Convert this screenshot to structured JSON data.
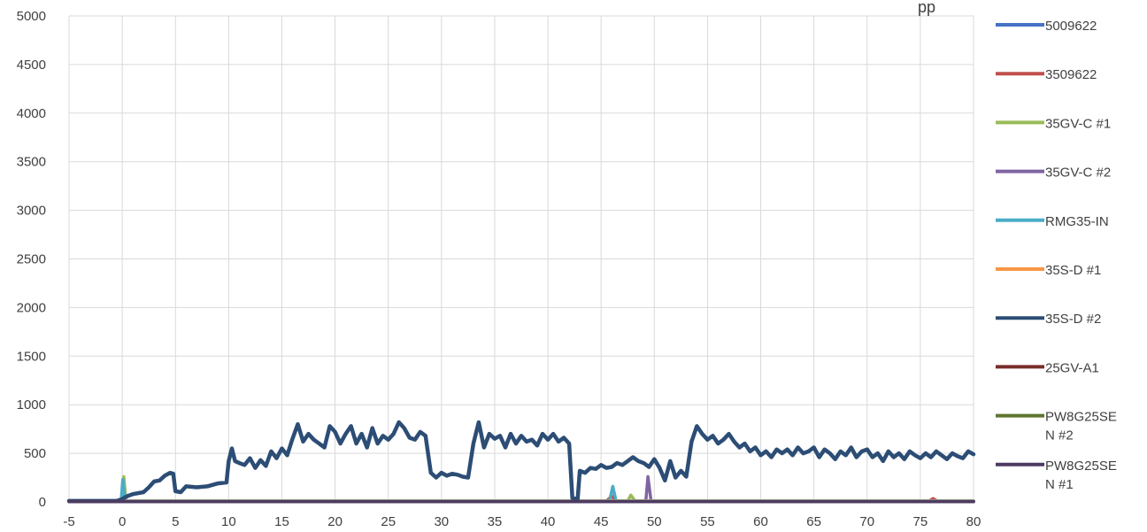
{
  "chart_data": {
    "type": "line",
    "title_fragment": "pp",
    "xlabel": "",
    "ylabel": "",
    "xlim": [
      -5,
      80
    ],
    "ylim": [
      0,
      5000
    ],
    "x_ticks": [
      -5,
      0,
      5,
      10,
      15,
      20,
      25,
      30,
      35,
      40,
      45,
      50,
      55,
      60,
      65,
      70,
      75,
      80
    ],
    "y_ticks": [
      0,
      500,
      1000,
      1500,
      2000,
      2500,
      3000,
      3500,
      4000,
      4500,
      5000
    ],
    "grid": true,
    "legend_position": "right",
    "series": [
      {
        "name": "5009622",
        "color": "#4472C4",
        "points": [
          [
            -5,
            10
          ],
          [
            80,
            10
          ]
        ]
      },
      {
        "name": "3509622",
        "color": "#C0504D",
        "points": [
          [
            -5,
            8
          ],
          [
            45.5,
            8
          ],
          [
            46,
            60
          ],
          [
            46.4,
            8
          ],
          [
            75.8,
            8
          ],
          [
            76.2,
            35
          ],
          [
            76.6,
            8
          ],
          [
            80,
            8
          ]
        ]
      },
      {
        "name": "35GV-C #1",
        "color": "#9BBB59",
        "points": [
          [
            -5,
            8
          ],
          [
            0,
            8
          ],
          [
            0.15,
            260
          ],
          [
            0.35,
            8
          ],
          [
            47.5,
            8
          ],
          [
            47.8,
            70
          ],
          [
            48.2,
            8
          ],
          [
            80,
            8
          ]
        ]
      },
      {
        "name": "35GV-C #2",
        "color": "#8064A2",
        "points": [
          [
            -5,
            5
          ],
          [
            49.2,
            5
          ],
          [
            49.4,
            260
          ],
          [
            49.7,
            5
          ],
          [
            80,
            5
          ]
        ]
      },
      {
        "name": "RMG35-IN",
        "color": "#4BACC6",
        "points": [
          [
            -5,
            12
          ],
          [
            -0.1,
            12
          ],
          [
            0.05,
            230
          ],
          [
            0.3,
            12
          ],
          [
            45.8,
            12
          ],
          [
            46.1,
            160
          ],
          [
            46.4,
            12
          ],
          [
            80,
            12
          ]
        ]
      },
      {
        "name": "35S-D #1",
        "color": "#F79646",
        "points": [
          [
            -5,
            6
          ],
          [
            80,
            6
          ]
        ]
      },
      {
        "name": "35S-D #2",
        "color": "#2C4D75",
        "points": [
          [
            -5,
            10
          ],
          [
            -0.5,
            10
          ],
          [
            0,
            30
          ],
          [
            0.5,
            60
          ],
          [
            1,
            80
          ],
          [
            2,
            100
          ],
          [
            2.5,
            150
          ],
          [
            3,
            210
          ],
          [
            3.5,
            220
          ],
          [
            4,
            270
          ],
          [
            4.5,
            300
          ],
          [
            4.8,
            290
          ],
          [
            5,
            110
          ],
          [
            5.5,
            100
          ],
          [
            6,
            160
          ],
          [
            7,
            150
          ],
          [
            8,
            160
          ],
          [
            9,
            190
          ],
          [
            9.8,
            200
          ],
          [
            10,
            420
          ],
          [
            10.3,
            550
          ],
          [
            10.6,
            420
          ],
          [
            11,
            400
          ],
          [
            11.5,
            380
          ],
          [
            12,
            450
          ],
          [
            12.5,
            350
          ],
          [
            13,
            430
          ],
          [
            13.5,
            370
          ],
          [
            14,
            520
          ],
          [
            14.5,
            450
          ],
          [
            15,
            550
          ],
          [
            15.5,
            480
          ],
          [
            16,
            650
          ],
          [
            16.5,
            800
          ],
          [
            17,
            620
          ],
          [
            17.5,
            700
          ],
          [
            18,
            640
          ],
          [
            18.5,
            600
          ],
          [
            19,
            560
          ],
          [
            19.5,
            780
          ],
          [
            20,
            720
          ],
          [
            20.5,
            600
          ],
          [
            21,
            700
          ],
          [
            21.5,
            780
          ],
          [
            22,
            600
          ],
          [
            22.5,
            700
          ],
          [
            23,
            560
          ],
          [
            23.5,
            760
          ],
          [
            24,
            600
          ],
          [
            24.5,
            680
          ],
          [
            25,
            640
          ],
          [
            25.5,
            700
          ],
          [
            26,
            820
          ],
          [
            26.5,
            760
          ],
          [
            27,
            660
          ],
          [
            27.5,
            640
          ],
          [
            28,
            720
          ],
          [
            28.5,
            680
          ],
          [
            29,
            300
          ],
          [
            29.5,
            250
          ],
          [
            30,
            300
          ],
          [
            30.5,
            270
          ],
          [
            31,
            290
          ],
          [
            31.5,
            280
          ],
          [
            32,
            260
          ],
          [
            32.5,
            250
          ],
          [
            33,
            600
          ],
          [
            33.5,
            820
          ],
          [
            34,
            560
          ],
          [
            34.5,
            700
          ],
          [
            35,
            650
          ],
          [
            35.5,
            680
          ],
          [
            36,
            560
          ],
          [
            36.5,
            700
          ],
          [
            37,
            600
          ],
          [
            37.5,
            680
          ],
          [
            38,
            620
          ],
          [
            38.5,
            640
          ],
          [
            39,
            580
          ],
          [
            39.5,
            700
          ],
          [
            40,
            640
          ],
          [
            40.5,
            700
          ],
          [
            41,
            620
          ],
          [
            41.5,
            660
          ],
          [
            42,
            600
          ],
          [
            42.3,
            40
          ],
          [
            42.8,
            30
          ],
          [
            43,
            320
          ],
          [
            43.5,
            300
          ],
          [
            44,
            350
          ],
          [
            44.5,
            340
          ],
          [
            45,
            380
          ],
          [
            45.5,
            350
          ],
          [
            46,
            360
          ],
          [
            46.5,
            400
          ],
          [
            47,
            380
          ],
          [
            47.5,
            420
          ],
          [
            48,
            460
          ],
          [
            48.5,
            420
          ],
          [
            49,
            400
          ],
          [
            49.5,
            360
          ],
          [
            50,
            440
          ],
          [
            50.5,
            350
          ],
          [
            51,
            220
          ],
          [
            51.5,
            420
          ],
          [
            52,
            250
          ],
          [
            52.5,
            320
          ],
          [
            53,
            260
          ],
          [
            53.5,
            620
          ],
          [
            54,
            780
          ],
          [
            54.5,
            700
          ],
          [
            55,
            640
          ],
          [
            55.5,
            680
          ],
          [
            56,
            600
          ],
          [
            56.5,
            640
          ],
          [
            57,
            700
          ],
          [
            57.5,
            620
          ],
          [
            58,
            560
          ],
          [
            58.5,
            600
          ],
          [
            59,
            520
          ],
          [
            59.5,
            560
          ],
          [
            60,
            480
          ],
          [
            60.5,
            520
          ],
          [
            61,
            460
          ],
          [
            61.5,
            540
          ],
          [
            62,
            500
          ],
          [
            62.5,
            540
          ],
          [
            63,
            480
          ],
          [
            63.5,
            560
          ],
          [
            64,
            500
          ],
          [
            64.5,
            520
          ],
          [
            65,
            560
          ],
          [
            65.5,
            460
          ],
          [
            66,
            540
          ],
          [
            66.5,
            500
          ],
          [
            67,
            440
          ],
          [
            67.5,
            520
          ],
          [
            68,
            480
          ],
          [
            68.5,
            560
          ],
          [
            69,
            460
          ],
          [
            69.5,
            520
          ],
          [
            70,
            540
          ],
          [
            70.5,
            460
          ],
          [
            71,
            500
          ],
          [
            71.5,
            420
          ],
          [
            72,
            520
          ],
          [
            72.5,
            460
          ],
          [
            73,
            500
          ],
          [
            73.5,
            440
          ],
          [
            74,
            520
          ],
          [
            74.5,
            480
          ],
          [
            75,
            450
          ],
          [
            75.5,
            500
          ],
          [
            76,
            460
          ],
          [
            76.5,
            520
          ],
          [
            77,
            480
          ],
          [
            77.5,
            440
          ],
          [
            78,
            500
          ],
          [
            78.5,
            470
          ],
          [
            79,
            450
          ],
          [
            79.5,
            520
          ],
          [
            80,
            490
          ]
        ]
      },
      {
        "name": "25GV-A1",
        "color": "#772C2A",
        "points": [
          [
            -5,
            4
          ],
          [
            80,
            4
          ]
        ]
      },
      {
        "name": "PW8G25SEN #2",
        "color": "#5F7530",
        "points": [
          [
            -5,
            3
          ],
          [
            80,
            3
          ]
        ]
      },
      {
        "name": "PW8G25SEN #1",
        "color": "#4D3B62",
        "points": [
          [
            -5,
            2
          ],
          [
            80,
            2
          ]
        ]
      }
    ]
  },
  "legend": {
    "labels": [
      [
        "5009622"
      ],
      [
        "3509622"
      ],
      [
        "35GV-C #1"
      ],
      [
        "35GV-C #2"
      ],
      [
        "RMG35-IN"
      ],
      [
        "35S-D #1"
      ],
      [
        "35S-D #2"
      ],
      [
        "25GV-A1"
      ],
      [
        "PW8G25SE",
        "N #2"
      ],
      [
        "PW8G25SE",
        "N #1"
      ]
    ]
  }
}
